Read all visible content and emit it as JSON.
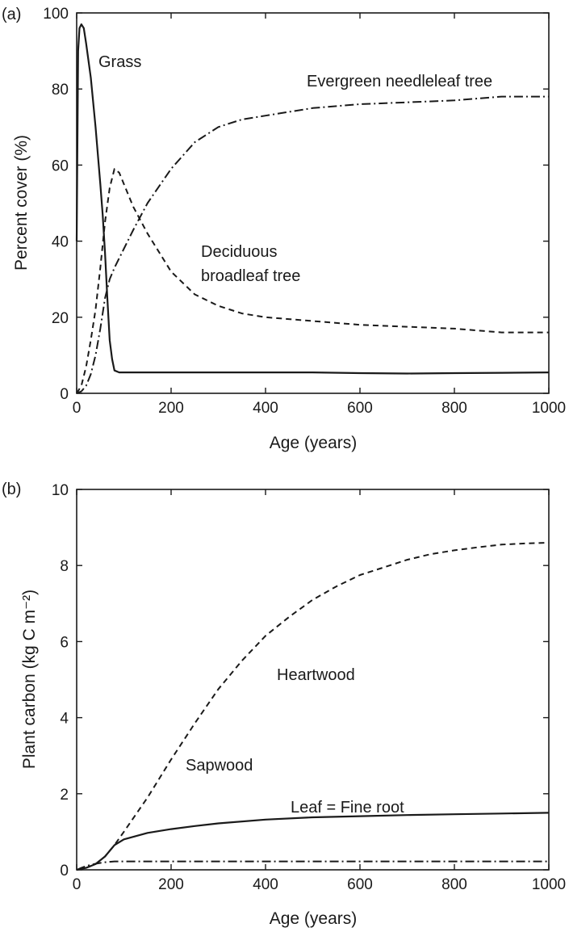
{
  "chart_data": [
    {
      "type": "line",
      "panel_label": "(a)",
      "xlabel": "Age (years)",
      "ylabel": "Percent cover (%)",
      "xlim": [
        0,
        1000
      ],
      "ylim": [
        0,
        100
      ],
      "x_ticks": [
        0,
        200,
        400,
        600,
        800,
        1000
      ],
      "y_ticks": [
        0,
        20,
        40,
        60,
        80,
        100
      ],
      "grid": false,
      "series": [
        {
          "name": "Grass",
          "style": "solid",
          "x": [
            0,
            3,
            6,
            10,
            15,
            20,
            30,
            40,
            50,
            55,
            60,
            65,
            70,
            75,
            80,
            90,
            100,
            150,
            200,
            300,
            400,
            500,
            600,
            700,
            800,
            900,
            1000
          ],
          "y": [
            40,
            90,
            96,
            97,
            96,
            92,
            83,
            70,
            55,
            47,
            37,
            25,
            14,
            9,
            6,
            5.5,
            5.5,
            5.5,
            5.5,
            5.5,
            5.5,
            5.5,
            5.3,
            5.2,
            5.3,
            5.4,
            5.5
          ]
        },
        {
          "name": "Deciduous broadleaf tree",
          "style": "dashed",
          "x": [
            0,
            10,
            20,
            30,
            40,
            50,
            60,
            70,
            80,
            90,
            100,
            120,
            150,
            180,
            200,
            250,
            300,
            350,
            400,
            500,
            600,
            700,
            800,
            900,
            1000
          ],
          "y": [
            0,
            2,
            7,
            14,
            22,
            33,
            45,
            54,
            59,
            58,
            55,
            49,
            42,
            36,
            32,
            26,
            23,
            21,
            20,
            19,
            18,
            17.5,
            17,
            16,
            16
          ]
        },
        {
          "name": "Evergreen needleleaf tree",
          "style": "dashdot",
          "x": [
            0,
            10,
            20,
            30,
            40,
            50,
            60,
            70,
            80,
            100,
            120,
            150,
            200,
            250,
            300,
            350,
            400,
            500,
            600,
            700,
            800,
            900,
            1000
          ],
          "y": [
            0,
            0.5,
            2,
            5,
            10,
            17,
            25,
            30,
            33,
            38,
            43,
            50,
            59,
            66,
            70,
            72,
            73,
            75,
            76,
            76.5,
            77,
            78,
            78
          ]
        }
      ],
      "annotations": [
        "Grass",
        "Evergreen needleleaf tree",
        "Deciduous",
        "broadleaf tree"
      ]
    },
    {
      "type": "line",
      "panel_label": "(b)",
      "xlabel": "Age (years)",
      "ylabel": "Plant carbon (kg C m⁻²)",
      "xlim": [
        0,
        1000
      ],
      "ylim": [
        0,
        10
      ],
      "x_ticks": [
        0,
        200,
        400,
        600,
        800,
        1000
      ],
      "y_ticks": [
        0,
        2,
        4,
        6,
        8,
        10
      ],
      "grid": false,
      "series": [
        {
          "name": "Heartwood",
          "style": "dashed",
          "x": [
            0,
            20,
            40,
            60,
            80,
            100,
            150,
            200,
            250,
            300,
            350,
            400,
            450,
            500,
            550,
            600,
            650,
            700,
            750,
            800,
            850,
            900,
            950,
            1000
          ],
          "y": [
            0,
            0.05,
            0.15,
            0.35,
            0.65,
            1.0,
            1.9,
            2.9,
            3.85,
            4.75,
            5.5,
            6.15,
            6.65,
            7.1,
            7.45,
            7.75,
            7.95,
            8.15,
            8.3,
            8.4,
            8.48,
            8.55,
            8.58,
            8.6
          ]
        },
        {
          "name": "Sapwood",
          "style": "solid",
          "x": [
            0,
            20,
            40,
            60,
            80,
            100,
            150,
            200,
            250,
            300,
            400,
            500,
            600,
            700,
            800,
            900,
            1000
          ],
          "y": [
            0,
            0.05,
            0.15,
            0.35,
            0.65,
            0.8,
            0.97,
            1.07,
            1.15,
            1.22,
            1.32,
            1.38,
            1.41,
            1.44,
            1.46,
            1.48,
            1.5
          ]
        },
        {
          "name": "Leaf = Fine root",
          "style": "dashdot",
          "x": [
            0,
            10,
            20,
            30,
            40,
            50,
            60,
            70,
            80,
            100,
            200,
            400,
            600,
            800,
            1000
          ],
          "y": [
            0,
            0.05,
            0.1,
            0.13,
            0.16,
            0.18,
            0.2,
            0.21,
            0.22,
            0.22,
            0.22,
            0.22,
            0.22,
            0.22,
            0.22
          ]
        }
      ],
      "annotations": [
        "Heartwood",
        "Sapwood",
        "Leaf = Fine root"
      ]
    }
  ]
}
